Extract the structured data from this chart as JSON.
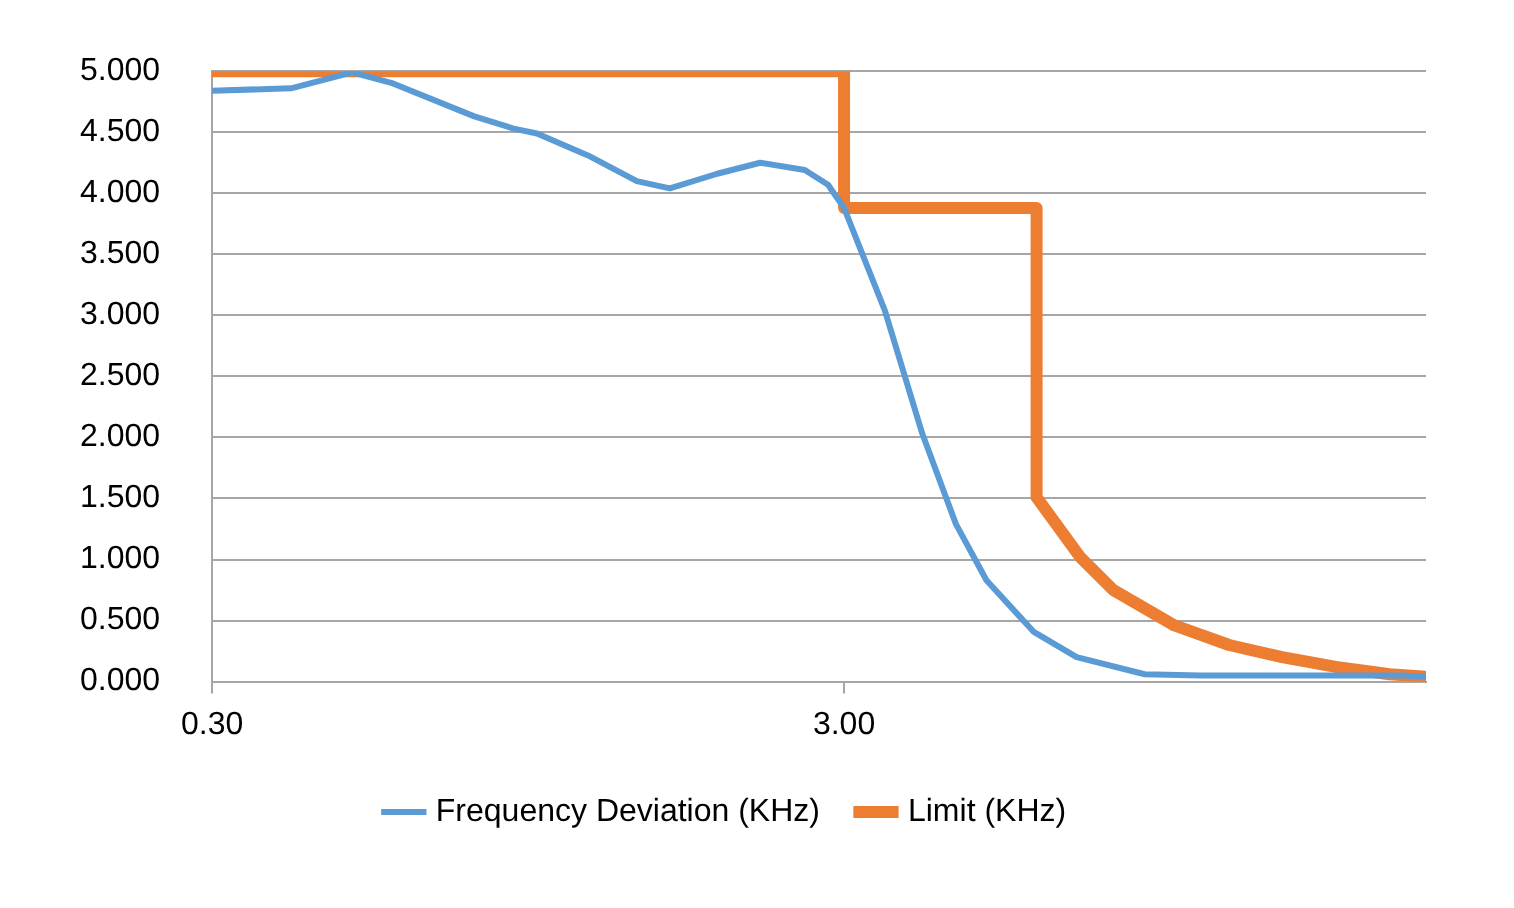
{
  "chart_data": {
    "type": "line",
    "series": [
      {
        "name": "Frequency Deviation (KHz)",
        "color": "#5b9bd5",
        "x": [
          0.3,
          0.4,
          0.5,
          0.58,
          0.78,
          0.9,
          0.98,
          1.18,
          1.41,
          1.59,
          1.89,
          2.21,
          2.6,
          2.83,
          3.0,
          3.48,
          3.99,
          4.51,
          5.04,
          5.98,
          7.0,
          8.97,
          11.0,
          17.2,
          23.0,
          25.0
        ],
        "values": [
          4.84,
          4.86,
          4.99,
          4.9,
          4.63,
          4.53,
          4.49,
          4.31,
          4.1,
          4.04,
          4.16,
          4.25,
          4.19,
          4.07,
          3.88,
          3.04,
          2.03,
          1.29,
          0.83,
          0.41,
          0.2,
          0.06,
          0.05,
          0.05,
          0.05,
          0.04
        ]
      },
      {
        "name": "Limit (KHz)",
        "color": "#ed7d31",
        "x": [
          0.3,
          3.0,
          3.0,
          6.05,
          6.05,
          7.09,
          8.0,
          10.0,
          12.2,
          14.8,
          18.0,
          21.9,
          25.0
        ],
        "values": [
          5.0,
          5.0,
          3.88,
          3.88,
          1.51,
          1.02,
          0.75,
          0.46,
          0.3,
          0.2,
          0.12,
          0.06,
          0.04
        ]
      }
    ],
    "log": "x",
    "xlim": [
      0.3,
      25
    ],
    "xticks": [
      {
        "value": 0.3,
        "label": "0.30"
      },
      {
        "value": 3,
        "label": "3.00"
      }
    ],
    "ylim": [
      0,
      5
    ],
    "yticks": [
      {
        "value": 0,
        "label": "0.000"
      },
      {
        "value": 0.5,
        "label": "0.500"
      },
      {
        "value": 1,
        "label": "1.000"
      },
      {
        "value": 1.5,
        "label": "1.500"
      },
      {
        "value": 2,
        "label": "2.000"
      },
      {
        "value": 2.5,
        "label": "2.500"
      },
      {
        "value": 3,
        "label": "3.000"
      },
      {
        "value": 3.5,
        "label": "3.500"
      },
      {
        "value": 4,
        "label": "4.000"
      },
      {
        "value": 4.5,
        "label": "4.500"
      },
      {
        "value": 5,
        "label": "5.000"
      }
    ],
    "grid": "y",
    "legend": "bottom",
    "marker": "none",
    "line_style": "solid"
  }
}
